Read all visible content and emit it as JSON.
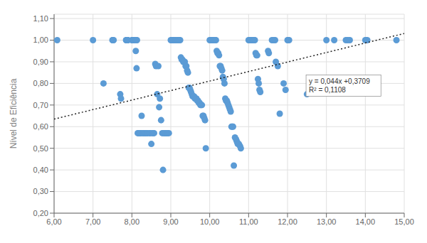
{
  "chart_data": {
    "type": "scatter",
    "ylabel": "Nível de Eficiência",
    "grid": true,
    "xlim": [
      6.0,
      15.0
    ],
    "ylim": [
      0.2,
      1.12
    ],
    "xticks": [
      {
        "value": 6.0,
        "label": "6,00"
      },
      {
        "value": 7.0,
        "label": "7,00"
      },
      {
        "value": 8.0,
        "label": "8,00"
      },
      {
        "value": 9.0,
        "label": "9,00"
      },
      {
        "value": 10.0,
        "label": "10,00"
      },
      {
        "value": 11.0,
        "label": "11,00"
      },
      {
        "value": 12.0,
        "label": "12,00"
      },
      {
        "value": 13.0,
        "label": "13,00"
      },
      {
        "value": 14.0,
        "label": "14,00"
      },
      {
        "value": 15.0,
        "label": "15,00"
      }
    ],
    "yticks": [
      {
        "value": 0.2,
        "label": "0,20"
      },
      {
        "value": 0.3,
        "label": "0,30"
      },
      {
        "value": 0.4,
        "label": "0,40"
      },
      {
        "value": 0.5,
        "label": "0,50"
      },
      {
        "value": 0.6,
        "label": "0,60"
      },
      {
        "value": 0.7,
        "label": "0,70"
      },
      {
        "value": 0.8,
        "label": "0,80"
      },
      {
        "value": 0.9,
        "label": "0,90"
      },
      {
        "value": 1.0,
        "label": "1,00"
      },
      {
        "value": 1.1,
        "label": "1,10"
      }
    ],
    "series": [
      {
        "type": "scatter",
        "color": "#5B9BD5",
        "x": [
          6.08,
          7.0,
          7.27,
          7.5,
          7.51,
          7.53,
          7.7,
          7.72,
          7.85,
          7.86,
          7.87,
          7.88,
          7.89,
          7.9,
          8.0,
          8.01,
          8.02,
          8.03,
          8.04,
          8.05,
          8.06,
          8.07,
          8.08,
          8.09,
          8.1,
          8.1,
          8.11,
          8.12,
          8.13,
          8.15,
          8.17,
          8.18,
          8.2,
          8.22,
          8.23,
          8.25,
          8.28,
          8.3,
          8.32,
          8.35,
          8.38,
          8.4,
          8.45,
          8.47,
          8.5,
          8.52,
          8.55,
          8.57,
          8.6,
          8.62,
          8.65,
          8.68,
          8.7,
          8.72,
          8.75,
          8.78,
          8.8,
          8.82,
          8.85,
          8.87,
          8.9,
          8.92,
          8.95,
          9.0,
          9.02,
          9.04,
          9.06,
          9.08,
          9.1,
          9.12,
          9.14,
          9.15,
          9.17,
          9.19,
          9.2,
          9.22,
          9.24,
          9.26,
          9.28,
          9.3,
          9.32,
          9.34,
          9.36,
          9.38,
          9.4,
          9.42,
          9.44,
          9.46,
          9.48,
          9.5,
          9.52,
          9.54,
          9.56,
          9.58,
          9.6,
          9.62,
          9.64,
          9.66,
          9.68,
          9.7,
          9.72,
          9.74,
          9.76,
          9.78,
          9.8,
          9.82,
          9.84,
          9.86,
          9.88,
          9.9,
          10.0,
          10.02,
          10.04,
          10.06,
          10.08,
          10.1,
          10.12,
          10.14,
          10.16,
          10.18,
          10.2,
          10.22,
          10.24,
          10.26,
          10.28,
          10.3,
          10.32,
          10.34,
          10.36,
          10.38,
          10.4,
          10.42,
          10.44,
          10.46,
          10.48,
          10.5,
          10.52,
          10.54,
          10.56,
          10.58,
          10.6,
          10.62,
          10.65,
          10.68,
          10.7,
          10.72,
          10.75,
          10.78,
          10.8,
          11.0,
          11.02,
          11.04,
          11.06,
          11.08,
          11.1,
          11.12,
          11.14,
          11.16,
          11.18,
          11.2,
          11.22,
          11.24,
          11.26,
          11.28,
          11.3,
          11.5,
          11.52,
          11.6,
          11.65,
          11.68,
          11.7,
          11.75,
          11.8,
          11.9,
          11.95,
          12.0,
          12.02,
          12.04,
          12.5,
          13.0,
          13.2,
          13.5,
          13.55,
          13.6,
          14.0,
          14.02,
          14.05,
          14.8
        ],
        "values": [
          1.0,
          1.0,
          0.8,
          1.0,
          1.0,
          1.0,
          0.75,
          0.73,
          1.0,
          1.0,
          1.0,
          1.0,
          1.0,
          1.0,
          1.0,
          1.0,
          1.0,
          1.0,
          1.0,
          1.0,
          1.0,
          1.0,
          1.0,
          1.0,
          1.0,
          0.95,
          1.0,
          0.87,
          1.0,
          0.57,
          0.57,
          0.57,
          0.57,
          0.57,
          0.57,
          0.65,
          0.57,
          0.57,
          0.57,
          0.57,
          0.57,
          0.57,
          0.57,
          0.57,
          0.52,
          0.57,
          0.57,
          0.57,
          0.89,
          0.88,
          0.75,
          0.88,
          0.69,
          0.73,
          0.63,
          0.57,
          0.4,
          0.57,
          0.57,
          0.57,
          0.57,
          0.57,
          0.57,
          1.0,
          1.0,
          1.0,
          1.0,
          1.0,
          1.0,
          1.0,
          1.0,
          1.0,
          1.0,
          1.0,
          1.0,
          1.0,
          1.0,
          0.92,
          0.91,
          0.91,
          0.9,
          0.9,
          0.9,
          0.88,
          0.88,
          0.86,
          0.85,
          0.78,
          0.78,
          0.77,
          0.76,
          0.75,
          0.74,
          0.74,
          0.74,
          0.73,
          0.73,
          0.73,
          0.72,
          0.72,
          0.71,
          0.71,
          0.7,
          0.7,
          0.7,
          0.65,
          0.65,
          0.64,
          0.63,
          0.5,
          1.0,
          1.0,
          1.0,
          1.0,
          1.0,
          1.0,
          1.0,
          1.0,
          1.0,
          0.95,
          0.94,
          0.94,
          0.93,
          0.88,
          0.88,
          0.87,
          0.86,
          0.83,
          0.82,
          0.8,
          0.73,
          0.72,
          0.72,
          0.71,
          0.7,
          0.69,
          0.68,
          0.67,
          0.6,
          0.6,
          0.6,
          0.42,
          0.55,
          0.54,
          0.53,
          0.52,
          0.52,
          0.51,
          0.5,
          1.0,
          1.0,
          1.0,
          1.0,
          1.0,
          1.0,
          1.0,
          1.0,
          1.0,
          0.94,
          0.93,
          0.93,
          0.82,
          0.8,
          0.77,
          0.76,
          0.95,
          0.94,
          1.0,
          1.0,
          1.0,
          0.9,
          0.88,
          0.66,
          0.8,
          0.77,
          1.0,
          1.0,
          1.0,
          0.75,
          1.0,
          1.0,
          1.0,
          1.0,
          1.0,
          1.0,
          1.0,
          1.0,
          1.0
        ]
      },
      {
        "type": "line",
        "color": "#222222",
        "line_style": "dotted",
        "x": [
          6.0,
          15.0
        ],
        "values": [
          0.6349,
          1.0309
        ]
      }
    ],
    "annotations": [
      {
        "text": "y = 0,044x +0,3709\nR² = 0,1108",
        "x": 12.55,
        "y": 0.79
      }
    ]
  }
}
